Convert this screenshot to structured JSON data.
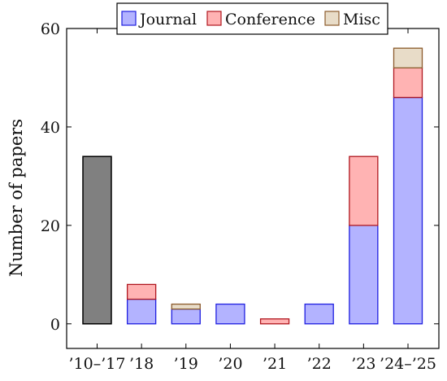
{
  "chart_data": {
    "type": "bar",
    "stacked": true,
    "title": "",
    "xlabel": "",
    "ylabel": "Number of papers",
    "ylim": [
      -5,
      60
    ],
    "yticks": [
      0,
      20,
      40,
      60
    ],
    "grid": false,
    "legend_position": "top-center",
    "categories": [
      "’10–’17",
      "’18",
      "’19",
      "’20",
      "’21",
      "’22",
      "’23",
      "’24–’25"
    ],
    "series": [
      {
        "name": "Journal",
        "fill": "#b3b3ff",
        "stroke": "#1f1fe0",
        "values": [
          0,
          5,
          3,
          4,
          0,
          4,
          20,
          46
        ]
      },
      {
        "name": "Conference",
        "fill": "#ffb3b3",
        "stroke": "#b0171f",
        "values": [
          0,
          3,
          0,
          0,
          1,
          0,
          14,
          6
        ]
      },
      {
        "name": "Misc",
        "fill": "#e8dcc8",
        "stroke": "#8b5a2b",
        "values": [
          0,
          0,
          1,
          0,
          0,
          0,
          0,
          4
        ]
      }
    ],
    "aggregate_bars": [
      {
        "category": "’10–’17",
        "value": 34,
        "fill": "#808080",
        "stroke": "#000000"
      }
    ]
  }
}
